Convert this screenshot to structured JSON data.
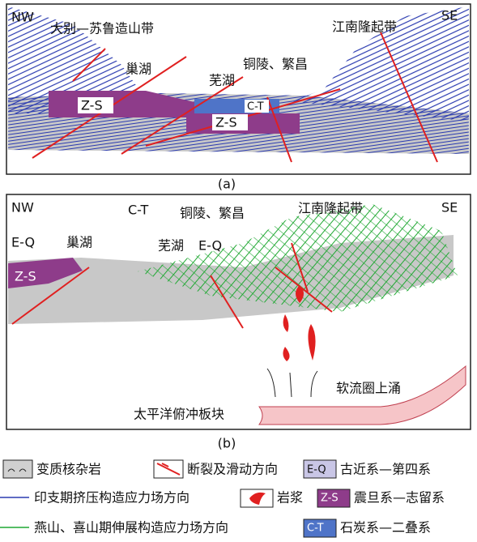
{
  "panel_a": {
    "caption": "(a)",
    "labels": [
      "NW",
      "SE",
      "大别—苏鲁造山带",
      "江南隆起带",
      "巢湖",
      "芜湖",
      "铜陵、繁昌",
      "Z-S",
      "C-T",
      "Z-S"
    ]
  },
  "panel_b": {
    "caption": "(b)",
    "labels": [
      "NW",
      "SE",
      "C-T",
      "铜陵、繁昌",
      "江南隆起带",
      "E-Q",
      "巢湖",
      "芜湖",
      "E-Q",
      "Z-S",
      "软流圈上涌",
      "太平洋俯冲板块"
    ]
  },
  "legend": [
    {
      "text": "变质核杂岩"
    },
    {
      "text": "断裂及滑动方向"
    },
    {
      "code": "E-Q",
      "text": "古近系—第四系"
    },
    {
      "text": "印支期挤压构造应力场方向"
    },
    {
      "text": "岩浆"
    },
    {
      "code": "Z-S",
      "text": "震旦系—志留系"
    },
    {
      "text": "燕山、喜山期伸展构造应力场方向"
    },
    {
      "code": "C-T",
      "text": "石炭系—二叠系"
    }
  ]
}
